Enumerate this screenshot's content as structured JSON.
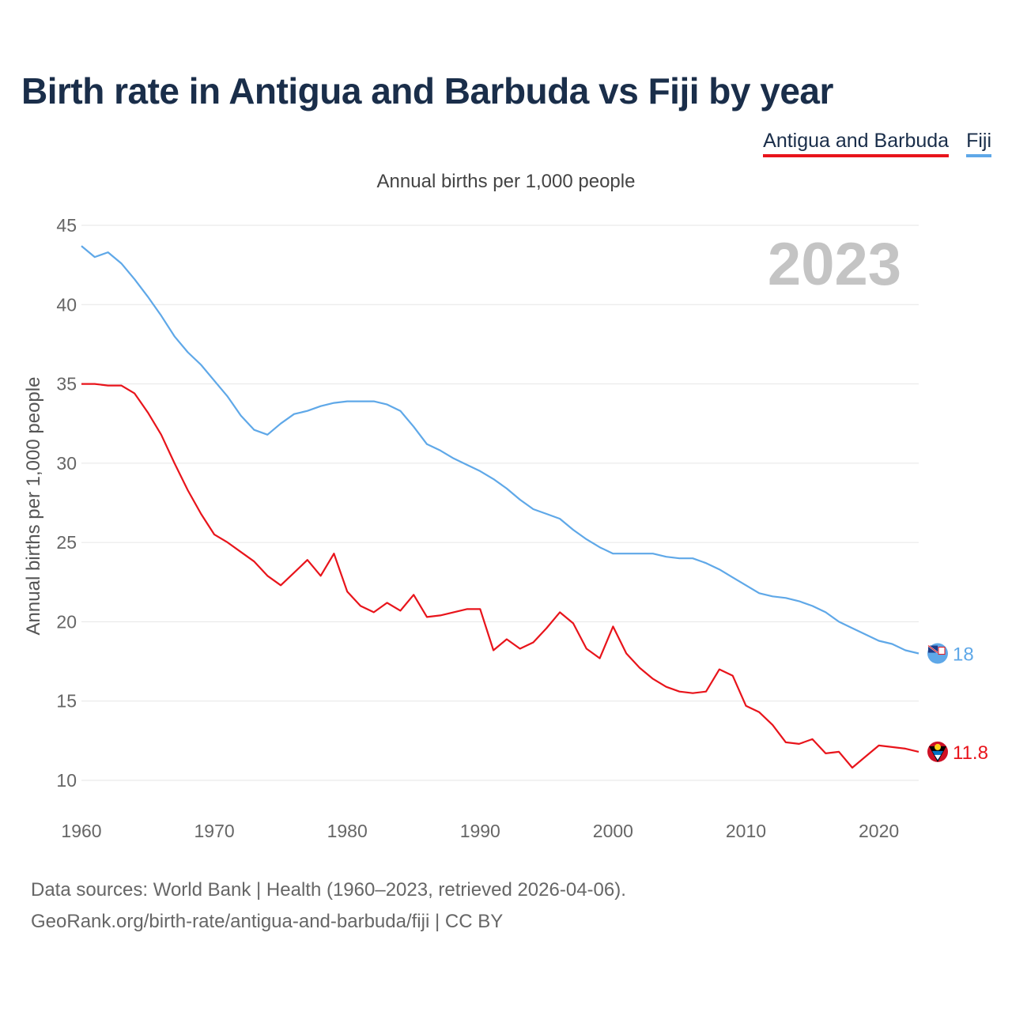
{
  "header": {
    "title": "Birth rate in Antigua and Barbuda vs Fiji by year",
    "subtitle": "Annual births per 1,000 people"
  },
  "legend": {
    "antigua": "Antigua and Barbuda",
    "fiji": "Fiji"
  },
  "footer": {
    "line1": "Data sources: World Bank | Health (1960–2023, retrieved 2026-04-06).",
    "line2": "GeoRank.org/birth-rate/antigua-and-barbuda/fiji | CC BY"
  },
  "chart_data": {
    "type": "line",
    "title": "Birth rate in Antigua and Barbuda vs Fiji by year",
    "ylabel": "Annual births per 1,000 people",
    "xlabel": "",
    "year_watermark": "2023",
    "ylim": [
      10,
      45
    ],
    "xlim": [
      1960,
      2023
    ],
    "yticks": [
      10,
      15,
      20,
      25,
      30,
      35,
      40,
      45
    ],
    "xticks": [
      1960,
      1970,
      1980,
      1990,
      2000,
      2010,
      2020
    ],
    "colors": {
      "antigua": "#e8141b",
      "fiji": "#5fa8e8"
    },
    "x": [
      1960,
      1961,
      1962,
      1963,
      1964,
      1965,
      1966,
      1967,
      1968,
      1969,
      1970,
      1971,
      1972,
      1973,
      1974,
      1975,
      1976,
      1977,
      1978,
      1979,
      1980,
      1981,
      1982,
      1983,
      1984,
      1985,
      1986,
      1987,
      1988,
      1989,
      1990,
      1991,
      1992,
      1993,
      1994,
      1995,
      1996,
      1997,
      1998,
      1999,
      2000,
      2001,
      2002,
      2003,
      2004,
      2005,
      2006,
      2007,
      2008,
      2009,
      2010,
      2011,
      2012,
      2013,
      2014,
      2015,
      2016,
      2017,
      2018,
      2019,
      2020,
      2021,
      2022,
      2023
    ],
    "series": [
      {
        "name": "Antigua and Barbuda",
        "key": "antigua",
        "end_label": "11.8",
        "values": [
          35.0,
          35.0,
          34.9,
          34.9,
          34.4,
          33.2,
          31.8,
          30.0,
          28.3,
          26.8,
          25.5,
          25.0,
          24.4,
          23.8,
          22.9,
          22.3,
          23.1,
          23.9,
          22.9,
          24.3,
          21.9,
          21.0,
          20.6,
          21.2,
          20.7,
          21.7,
          20.3,
          20.4,
          20.6,
          20.8,
          20.8,
          18.2,
          18.9,
          18.3,
          18.7,
          19.6,
          20.6,
          19.9,
          18.3,
          17.7,
          19.7,
          18.0,
          17.1,
          16.4,
          15.9,
          15.6,
          15.5,
          15.6,
          17.0,
          16.6,
          14.7,
          14.3,
          13.5,
          12.4,
          12.3,
          12.6,
          11.7,
          11.8,
          10.8,
          11.5,
          12.2,
          12.1,
          12.0,
          11.8
        ]
      },
      {
        "name": "Fiji",
        "key": "fiji",
        "end_label": "18",
        "values": [
          43.7,
          43.0,
          43.3,
          42.6,
          41.6,
          40.5,
          39.3,
          38.0,
          37.0,
          36.2,
          35.2,
          34.2,
          33.0,
          32.1,
          31.8,
          32.5,
          33.1,
          33.3,
          33.6,
          33.8,
          33.9,
          33.9,
          33.9,
          33.7,
          33.3,
          32.3,
          31.2,
          30.8,
          30.3,
          29.9,
          29.5,
          29.0,
          28.4,
          27.7,
          27.1,
          26.8,
          26.5,
          25.8,
          25.2,
          24.7,
          24.3,
          24.3,
          24.3,
          24.3,
          24.1,
          24.0,
          24.0,
          23.7,
          23.3,
          22.8,
          22.3,
          21.8,
          21.6,
          21.5,
          21.3,
          21.0,
          20.6,
          20.0,
          19.6,
          19.2,
          18.8,
          18.6,
          18.2,
          18.0
        ]
      }
    ]
  }
}
